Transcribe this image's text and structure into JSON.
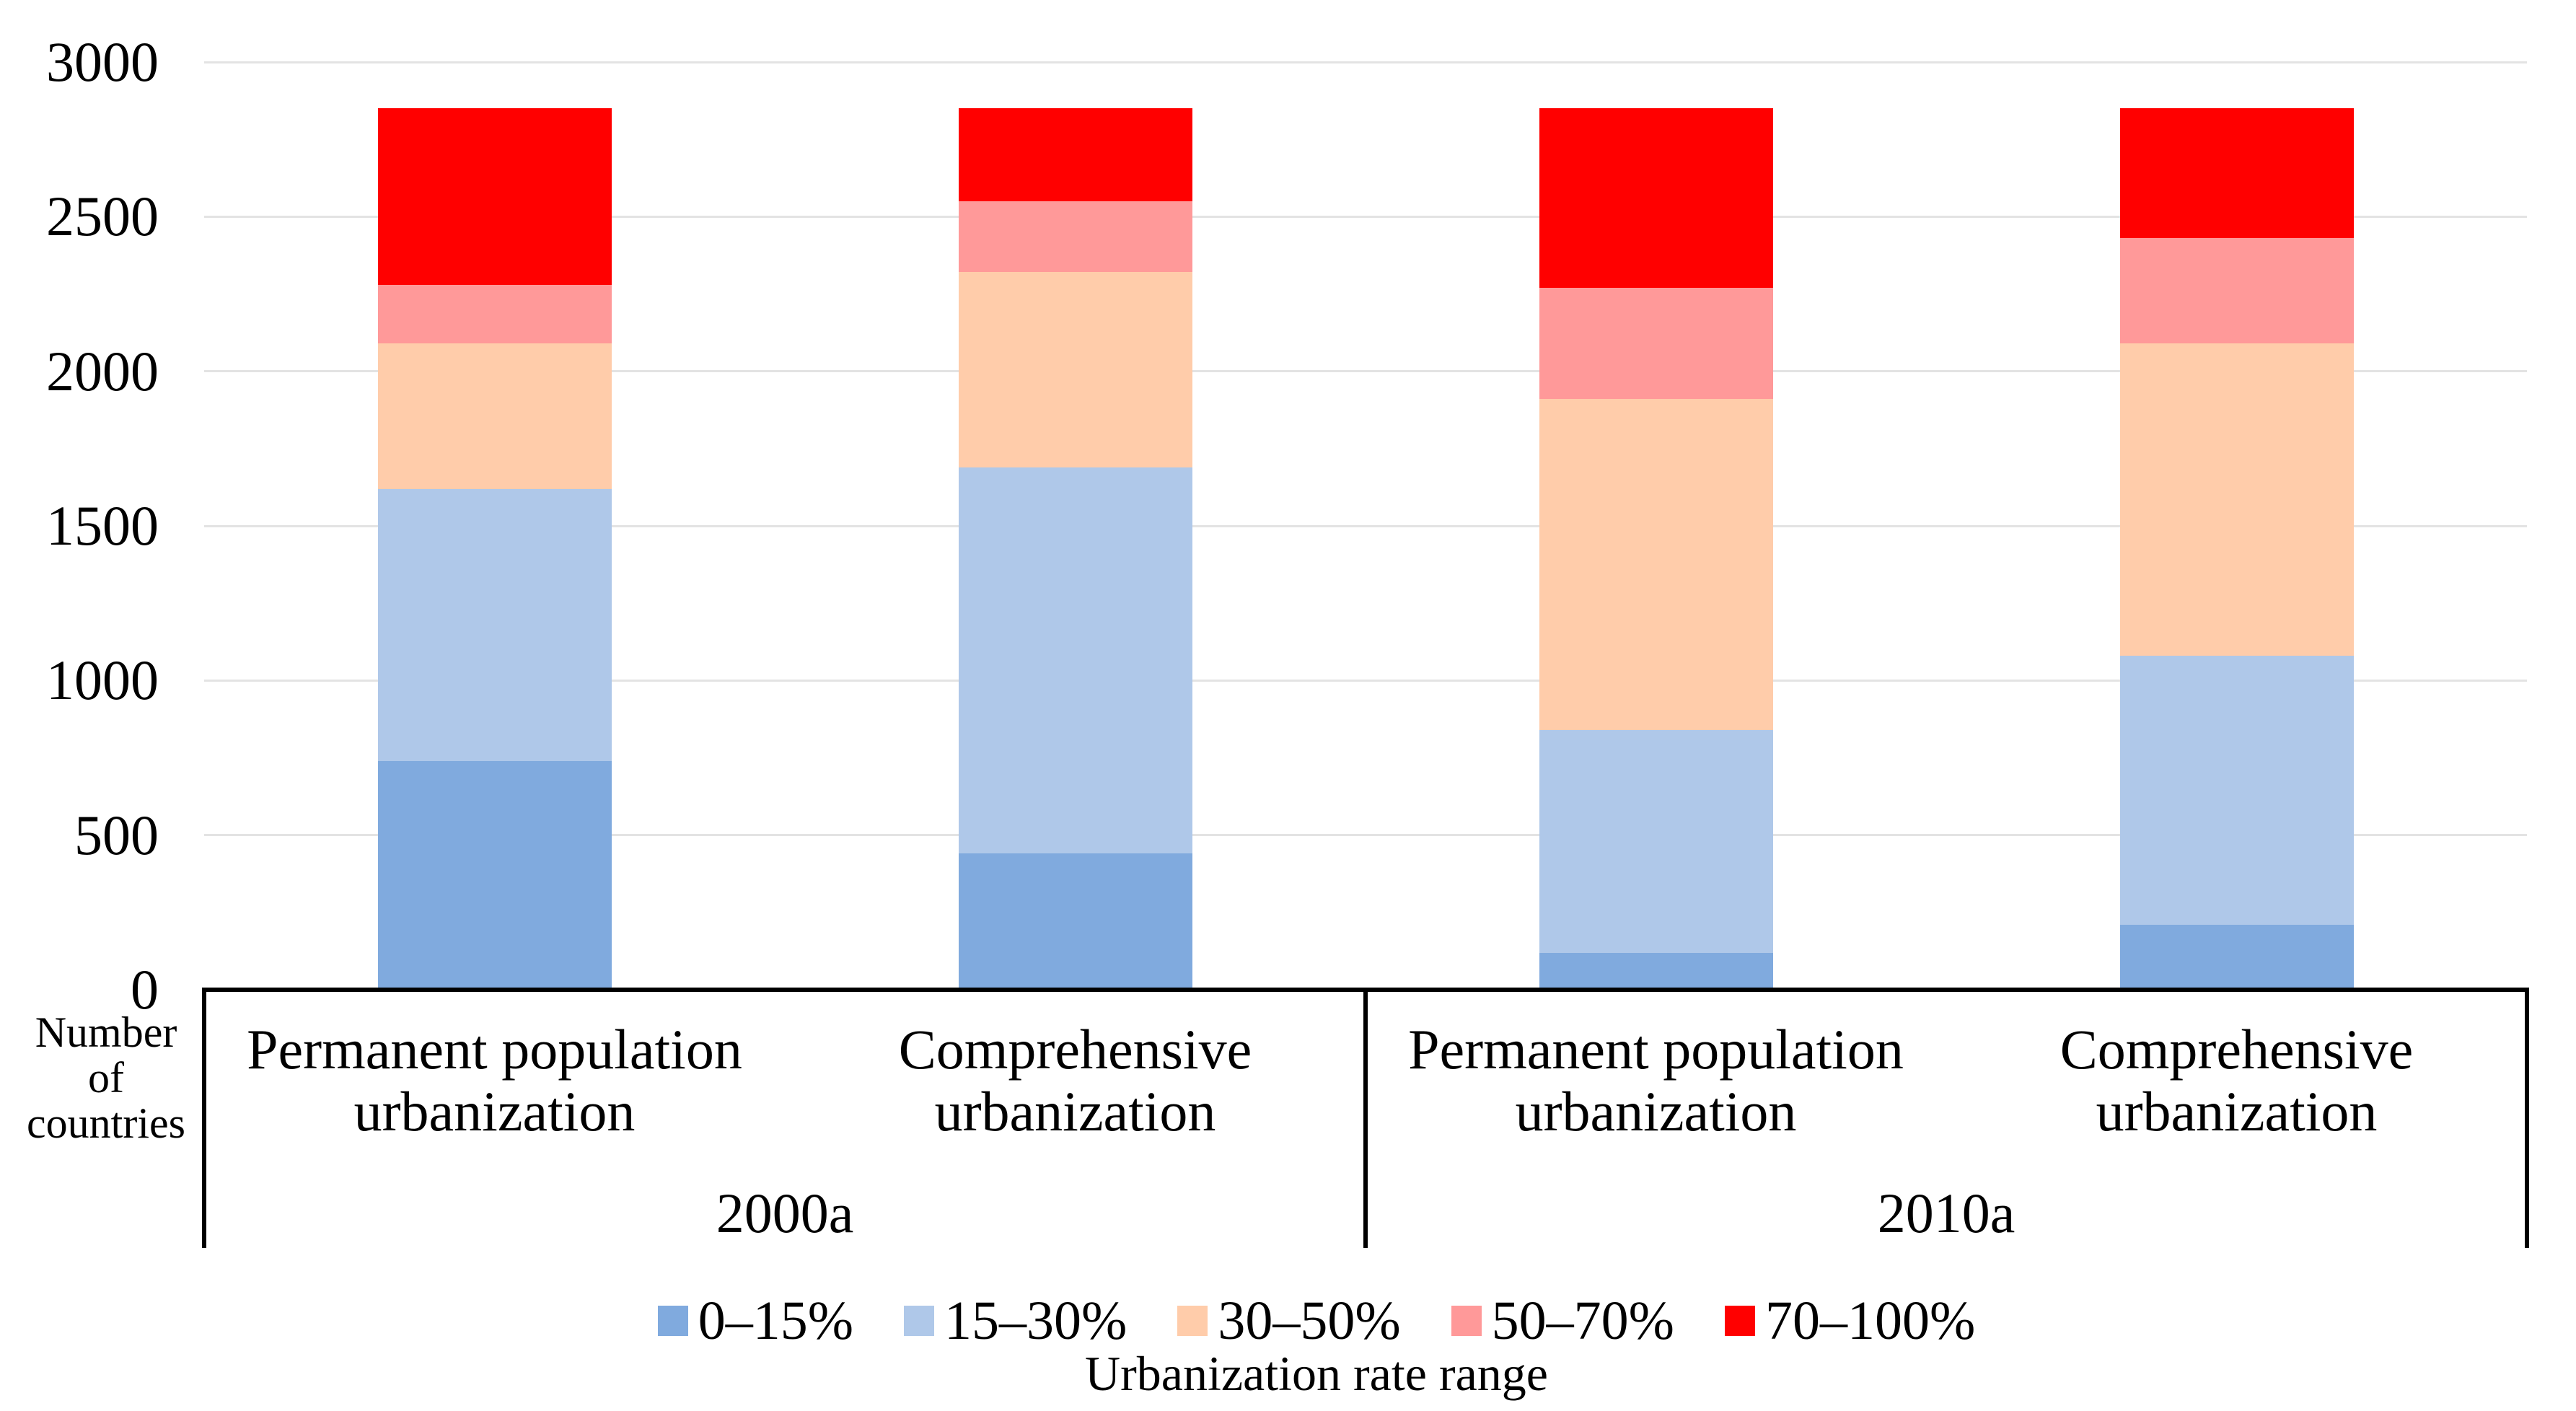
{
  "chart_data": {
    "type": "bar",
    "stacked": true,
    "title": "",
    "ylabel": "Number of countries",
    "xlabel": "Urbanization rate range",
    "ylim": [
      0,
      3000
    ],
    "yticks": [
      0,
      500,
      1000,
      1500,
      2000,
      2500,
      3000
    ],
    "grid": true,
    "legend_position": "bottom",
    "groups": [
      {
        "label": "2000a",
        "categories": [
          "Permanent population urbanization",
          "Comprehensive urbanization"
        ]
      },
      {
        "label": "2010a",
        "categories": [
          "Permanent population urbanization",
          "Comprehensive urbanization"
        ]
      }
    ],
    "categories": [
      "Permanent population urbanization",
      "Comprehensive urbanization",
      "Permanent population urbanization",
      "Comprehensive urbanization"
    ],
    "series": [
      {
        "name": "0–15%",
        "color": "#80AADE",
        "values": [
          740,
          440,
          120,
          210
        ]
      },
      {
        "name": "15–30%",
        "color": "#AFC8E9",
        "values": [
          880,
          1250,
          720,
          870
        ]
      },
      {
        "name": "30–50%",
        "color": "#FFCCAA",
        "values": [
          470,
          630,
          1070,
          1010
        ]
      },
      {
        "name": "50–70%",
        "color": "#FF9999",
        "values": [
          190,
          230,
          360,
          340
        ]
      },
      {
        "name": "70–100%",
        "color": "#FF0000",
        "values": [
          570,
          300,
          580,
          420
        ]
      }
    ],
    "totals": [
      2850,
      2850,
      2850,
      2850
    ],
    "axis_color": "#000000",
    "gridline_color": "#E3E3E3",
    "background": "#FFFFFF"
  }
}
